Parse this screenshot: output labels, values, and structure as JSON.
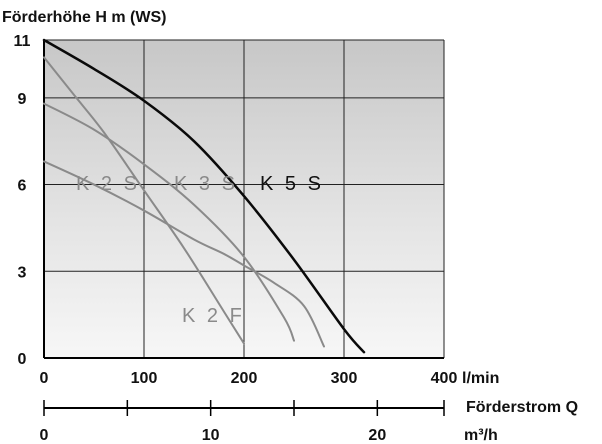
{
  "chart_data": {
    "type": "line",
    "title": "Förderhöhe H m (WS)",
    "yaxis": {
      "min": 0,
      "max": 11,
      "ticks": [
        0,
        3,
        6,
        9,
        11
      ]
    },
    "xaxis_primary": {
      "unit": "l/min",
      "min": 0,
      "max": 400,
      "ticks": [
        0,
        100,
        200,
        300,
        400
      ]
    },
    "xaxis_secondary": {
      "label": "Förderstrom Q",
      "unit": "m³/h",
      "ticks": [
        0,
        10,
        20
      ],
      "minor_ticks": [
        5,
        15,
        24
      ]
    },
    "grid": true,
    "series": [
      {
        "name": "K 2 S",
        "color": "#8a8a8a",
        "x": [
          0,
          30,
          60,
          100,
          140,
          180,
          200
        ],
        "y": [
          10.4,
          9.1,
          7.8,
          5.8,
          3.8,
          1.6,
          0.5
        ]
      },
      {
        "name": "K 3 S",
        "color": "#8a8a8a",
        "x": [
          0,
          50,
          100,
          150,
          200,
          240,
          250
        ],
        "y": [
          8.8,
          7.9,
          6.7,
          5.3,
          3.5,
          1.4,
          0.6
        ]
      },
      {
        "name": "K 2 F",
        "color": "#8a8a8a",
        "x": [
          0,
          50,
          100,
          150,
          180,
          200,
          230,
          260,
          280
        ],
        "y": [
          6.8,
          6.0,
          5.1,
          4.1,
          3.6,
          3.2,
          2.6,
          1.8,
          0.4
        ]
      },
      {
        "name": "K 5 S",
        "color": "#0a0a0a",
        "x": [
          0,
          50,
          100,
          150,
          200,
          250,
          300,
          320
        ],
        "y": [
          11,
          10.0,
          8.9,
          7.5,
          5.6,
          3.4,
          1.0,
          0.2
        ]
      }
    ]
  }
}
